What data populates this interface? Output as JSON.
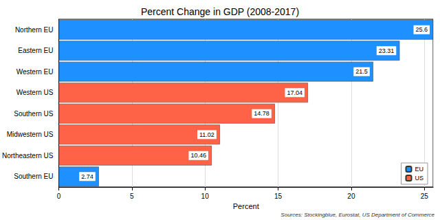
{
  "chart_data": {
    "type": "bar",
    "title": "Percent Change in GDP (2008-2017)",
    "x_label": "Percent",
    "annotations": [
      "Sources: Stockingblue, Eurostat, US Department of Commerce"
    ],
    "orientation": "horizontal",
    "categories": [
      "Northern EU",
      "Eastern EU",
      "Western EU",
      "Western US",
      "Southern US",
      "Midwestern US",
      "Northeastern US",
      "Southern EU"
    ],
    "series": [
      {
        "name": "EU",
        "color": "#1e90ff",
        "values": [
          25.6,
          23.31,
          21.5,
          null,
          null,
          null,
          null,
          2.74
        ]
      },
      {
        "name": "US",
        "color": "#ff6347",
        "values": [
          null,
          null,
          null,
          17.04,
          14.78,
          11.02,
          10.46,
          null
        ]
      }
    ],
    "xlim": [
      0,
      25.6
    ],
    "xticks": [
      0,
      5,
      10,
      15,
      20,
      25
    ],
    "grid": true,
    "data_labels": true,
    "legend": "lower right"
  }
}
